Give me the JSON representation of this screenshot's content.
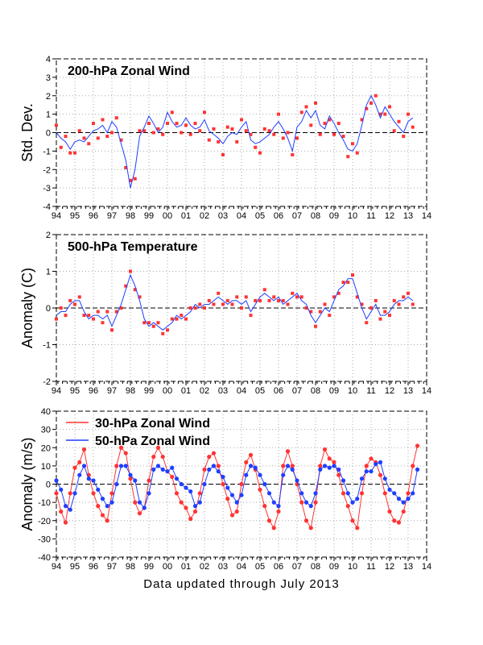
{
  "footer": "Data updated through July 2013",
  "colors": {
    "series_red": "#ff3333",
    "series_blue": "#1f3fff",
    "grid": "#aaaaaa",
    "zero_line": "#000000"
  },
  "chart_data": [
    {
      "type": "scatter",
      "title": "200-hPa Zonal Wind",
      "ylabel": "Std. Dev.",
      "xlim": [
        1994,
        2014
      ],
      "ylim": [
        -4,
        4
      ],
      "yticks": [
        -4,
        -3,
        -2,
        -1,
        0,
        1,
        2,
        3,
        4
      ],
      "xticks": [
        "94",
        "95",
        "96",
        "97",
        "98",
        "99",
        "00",
        "01",
        "02",
        "03",
        "04",
        "05",
        "06",
        "07",
        "08",
        "09",
        "10",
        "11",
        "12",
        "13",
        "14"
      ],
      "grid": true,
      "x_start": 1994,
      "x_step": 0.25,
      "series": [
        {
          "style": "red-dots",
          "color": "#ff3333",
          "values": [
            0.4,
            -0.8,
            -0.2,
            -1.1,
            -1.1,
            0.1,
            -0.3,
            -0.6,
            0.5,
            -0.3,
            0.7,
            -0.2,
            0.0,
            0.8,
            -0.4,
            -1.9,
            -2.6,
            -2.5,
            0.1,
            0.1,
            0.5,
            0.0,
            0.2,
            -0.1,
            0.5,
            1.1,
            0.5,
            0.0,
            0.4,
            -0.1,
            0.5,
            0.1,
            1.1,
            -0.4,
            0.2,
            -0.5,
            -1.2,
            0.3,
            0.2,
            -0.5,
            0.7,
            0.1,
            -0.1,
            -0.8,
            -1.1,
            0.2,
            0.1,
            -0.1,
            1.0,
            -0.3,
            0.0,
            -1.2,
            -0.3,
            1.1,
            1.4,
            0.4,
            1.6,
            -0.1,
            0.5,
            0.7,
            -0.1,
            0.5,
            -0.2,
            -1.3,
            -0.6,
            -1.1,
            0.7,
            1.3,
            1.6,
            2.0,
            1.0,
            1.0,
            1.4,
            0.1,
            0.6,
            -0.2,
            1.0,
            0.3
          ]
        },
        {
          "style": "blue-line",
          "color": "#1f3fff",
          "values": [
            0,
            -0.3,
            -0.5,
            -0.9,
            -0.5,
            -0.4,
            -0.5,
            -0.2,
            0.1,
            0.2,
            0.4,
            0.0,
            0.6,
            0.3,
            -0.6,
            -1.5,
            -3.0,
            -2.0,
            -0.2,
            0.3,
            0.9,
            0.5,
            0.0,
            0.3,
            1.1,
            0.6,
            0.3,
            0.4,
            0.8,
            0.4,
            0.2,
            0.3,
            0.7,
            0.1,
            -0.1,
            -0.3,
            -0.6,
            -0.2,
            0.0,
            -0.1,
            0.3,
            0.6,
            -0.4,
            -0.6,
            -0.5,
            -0.3,
            -0.1,
            0.3,
            0.6,
            0.2,
            -0.3,
            -1.0,
            0.3,
            0.6,
            1.2,
            0.8,
            1.2,
            0.4,
            0.2,
            0.9,
            0.5,
            0.0,
            -0.4,
            -0.9,
            -1.0,
            -0.6,
            0.4,
            1.5,
            2.0,
            1.5,
            0.8,
            1.4,
            1.0,
            0.6,
            0.3,
            0.0,
            0.6,
            0.8
          ]
        }
      ]
    },
    {
      "type": "scatter",
      "title": "500-hPa Temperature",
      "ylabel": "Anomaly (C)",
      "xlim": [
        1994,
        2014
      ],
      "ylim": [
        -2,
        2
      ],
      "yticks": [
        -2,
        -1,
        0,
        1,
        2
      ],
      "xticks": [
        "94",
        "95",
        "96",
        "97",
        "98",
        "99",
        "00",
        "01",
        "02",
        "03",
        "04",
        "05",
        "06",
        "07",
        "08",
        "09",
        "10",
        "11",
        "12",
        "13",
        "14"
      ],
      "grid": true,
      "x_start": 1994,
      "x_step": 0.25,
      "series": [
        {
          "style": "red-dots",
          "color": "#ff3333",
          "values": [
            -0.3,
            0.0,
            -0.2,
            0.2,
            0.1,
            0.3,
            -0.2,
            -0.2,
            -0.3,
            -0.1,
            -0.4,
            -0.1,
            -0.6,
            -0.1,
            0.0,
            0.6,
            1.0,
            0.5,
            0.3,
            -0.4,
            -0.4,
            -0.5,
            -0.4,
            -0.7,
            -0.6,
            -0.3,
            -0.3,
            -0.2,
            -0.3,
            0.0,
            0.0,
            0.1,
            0.0,
            0.2,
            0.1,
            0.4,
            0.1,
            0.2,
            0.1,
            0.3,
            0.0,
            0.3,
            -0.2,
            0.2,
            0.2,
            0.5,
            0.2,
            0.3,
            0.2,
            0.2,
            0.1,
            0.4,
            0.3,
            0.3,
            0.0,
            -0.1,
            -0.5,
            -0.1,
            0.1,
            -0.2,
            0.3,
            0.4,
            0.7,
            0.7,
            0.9,
            0.3,
            0.1,
            -0.4,
            0.0,
            0.2,
            -0.3,
            -0.1,
            -0.2,
            0.2,
            0.1,
            0.3,
            0.4,
            0.1
          ]
        },
        {
          "style": "blue-line",
          "color": "#1f3fff",
          "values": [
            -0.2,
            -0.1,
            -0.1,
            0.1,
            0.2,
            0.2,
            -0.1,
            -0.3,
            -0.2,
            -0.2,
            -0.3,
            -0.2,
            -0.5,
            -0.2,
            0.1,
            0.5,
            0.9,
            0.6,
            0.2,
            -0.3,
            -0.5,
            -0.4,
            -0.5,
            -0.6,
            -0.5,
            -0.4,
            -0.2,
            -0.3,
            -0.2,
            -0.1,
            0.1,
            0.0,
            0.1,
            0.1,
            0.2,
            0.3,
            0.2,
            0.1,
            0.2,
            0.2,
            0.1,
            0.2,
            -0.1,
            0.1,
            0.3,
            0.4,
            0.3,
            0.2,
            0.3,
            0.1,
            0.2,
            0.3,
            0.4,
            0.2,
            0.1,
            -0.2,
            -0.4,
            -0.2,
            0.0,
            -0.1,
            0.2,
            0.5,
            0.6,
            0.8,
            0.8,
            0.4,
            0.0,
            -0.3,
            -0.1,
            0.1,
            -0.2,
            -0.2,
            -0.1,
            0.1,
            0.2,
            0.2,
            0.3,
            0.2
          ]
        }
      ]
    },
    {
      "type": "line",
      "title": "",
      "ylabel": "Anomaly (m/s)",
      "xlim": [
        1994,
        2014
      ],
      "ylim": [
        -40,
        40
      ],
      "yticks": [
        -40,
        -30,
        -20,
        -10,
        0,
        10,
        20,
        30,
        40
      ],
      "xticks": [
        "94",
        "95",
        "96",
        "97",
        "98",
        "99",
        "00",
        "01",
        "02",
        "03",
        "04",
        "05",
        "06",
        "07",
        "08",
        "09",
        "10",
        "11",
        "12",
        "13",
        "14"
      ],
      "grid": true,
      "legend": "top-left",
      "x_start": 1994,
      "x_step": 0.25,
      "series": [
        {
          "name": "30-hPa Zonal Wind",
          "color": "#ff3333",
          "values": [
            -5,
            -15,
            -21,
            -5,
            9,
            12,
            19,
            5,
            -5,
            -12,
            -17,
            -20,
            -5,
            10,
            20,
            17,
            3,
            -10,
            -16,
            -13,
            2,
            15,
            20,
            15,
            7,
            4,
            -5,
            -10,
            -13,
            -19,
            -15,
            -5,
            8,
            15,
            17,
            10,
            0,
            -8,
            -17,
            -15,
            0,
            12,
            16,
            8,
            -3,
            -12,
            -20,
            -24,
            -15,
            10,
            18,
            10,
            0,
            -10,
            -20,
            -24,
            -10,
            10,
            19,
            14,
            12,
            5,
            -5,
            -12,
            -20,
            -24,
            -5,
            10,
            14,
            12,
            5,
            -5,
            -15,
            -20,
            -21,
            -15,
            -5,
            10,
            21
          ]
        },
        {
          "name": "50-hPa Zonal Wind",
          "color": "#1f3fff",
          "values": [
            2,
            -3,
            -12,
            -14,
            -5,
            5,
            10,
            3,
            2,
            -3,
            -8,
            -12,
            -10,
            0,
            10,
            10,
            5,
            2,
            -10,
            -13,
            -5,
            8,
            10,
            8,
            7,
            9,
            3,
            0,
            -2,
            -4,
            -12,
            -10,
            0,
            8,
            10,
            7,
            4,
            -2,
            -6,
            -10,
            -6,
            5,
            10,
            9,
            5,
            0,
            -5,
            -10,
            -12,
            5,
            10,
            8,
            2,
            -5,
            -10,
            -12,
            -5,
            8,
            10,
            9,
            10,
            8,
            2,
            -5,
            -10,
            -8,
            3,
            7,
            7,
            11,
            12,
            3,
            -3,
            -5,
            -8,
            -10,
            -8,
            -5,
            8
          ]
        }
      ]
    }
  ]
}
